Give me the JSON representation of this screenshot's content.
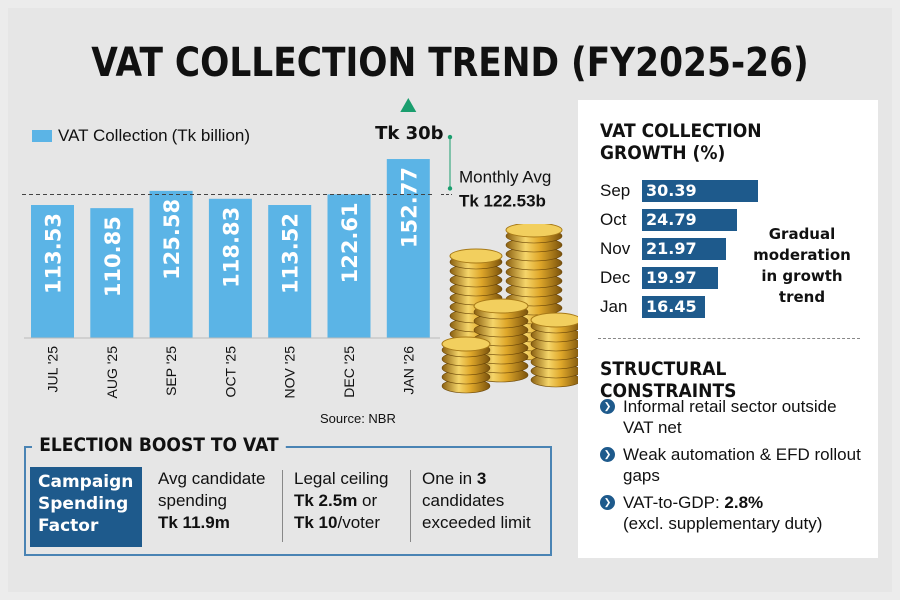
{
  "title": "VAT COLLECTION TREND (FY2025-26)",
  "chart_data": {
    "type": "bar",
    "categories": [
      "JUL '25",
      "AUG '25",
      "SEP '25",
      "OCT '25",
      "NOV '25",
      "DEC '25",
      "JAN '26"
    ],
    "values": [
      113.53,
      110.85,
      125.58,
      118.83,
      113.52,
      122.61,
      152.77
    ],
    "labels": [
      "113.53",
      "110.85",
      "125.58",
      "118.83",
      "113.52",
      "122.61",
      "152.77"
    ],
    "series_name": "VAT Collection",
    "series_unit": "(Tk billion)",
    "average": 122.53,
    "average_label_top": "Monthly Avg",
    "average_label_bottom": "Tk 122.53b",
    "jump_label": "Tk 30b",
    "source": "Source: NBR",
    "color": "#5bb4e6",
    "accent_color": "#1a9e6e"
  },
  "growth": {
    "title": "VAT COLLECTION GROWTH (%)",
    "rows": [
      {
        "month": "Sep",
        "value": 30.39,
        "label": "30.39"
      },
      {
        "month": "Oct",
        "value": 24.79,
        "label": "24.79"
      },
      {
        "month": "Nov",
        "value": 21.97,
        "label": "21.97"
      },
      {
        "month": "Dec",
        "value": 19.97,
        "label": "19.97"
      },
      {
        "month": "Jan",
        "value": 16.45,
        "label": "16.45"
      }
    ],
    "note": "Gradual moderation in growth trend",
    "color": "#1e5a8c"
  },
  "structural": {
    "title": "STRUCTURAL CONSTRAINTS",
    "items": [
      {
        "text": "Informal retail sector outside VAT net"
      },
      {
        "text": "Weak automation & EFD rollout gaps"
      },
      {
        "text_prefix": "VAT-to-GDP: ",
        "bold": "2.8%",
        "text_suffix": "(excl. supplementary duty)"
      }
    ]
  },
  "election": {
    "title": "ELECTION BOOST TO VAT",
    "factor": [
      "Campaign",
      "Spending",
      "Factor"
    ],
    "avg_line1": "Avg candidate",
    "avg_line2": "spending",
    "avg_value": "Tk 11.9m",
    "ceiling_line1": "Legal ceiling",
    "ceiling_b1": "Tk 2.5m",
    "ceiling_or": " or",
    "ceiling_b2": "Tk 10",
    "ceiling_suffix": "/voter",
    "onein_pre": "One in ",
    "onein_num": "3",
    "onein_line2": "candidates",
    "onein_line3": "exceeded limit"
  }
}
